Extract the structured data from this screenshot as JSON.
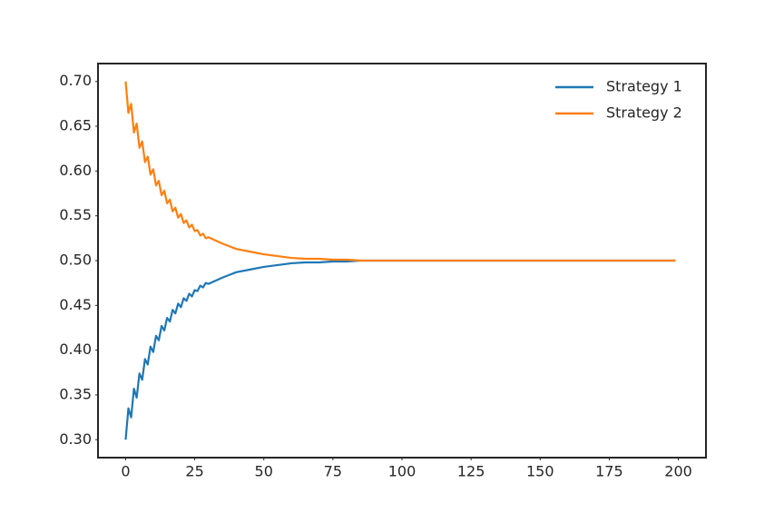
{
  "chart_data": {
    "type": "line",
    "x": [
      0,
      1,
      2,
      3,
      4,
      5,
      6,
      7,
      8,
      9,
      10,
      11,
      12,
      13,
      14,
      15,
      16,
      17,
      18,
      19,
      20,
      21,
      22,
      23,
      24,
      25,
      26,
      27,
      28,
      29,
      30,
      35,
      40,
      45,
      50,
      55,
      60,
      65,
      70,
      75,
      80,
      85,
      90,
      100,
      110,
      120,
      130,
      140,
      150,
      160,
      170,
      180,
      190,
      199
    ],
    "series": [
      {
        "name": "Strategy 1",
        "color": "#1f77b4",
        "values": [
          0.3,
          0.335,
          0.325,
          0.357,
          0.347,
          0.374,
          0.367,
          0.39,
          0.384,
          0.404,
          0.398,
          0.416,
          0.411,
          0.427,
          0.422,
          0.436,
          0.432,
          0.445,
          0.441,
          0.452,
          0.448,
          0.458,
          0.455,
          0.463,
          0.46,
          0.467,
          0.466,
          0.472,
          0.47,
          0.475,
          0.474,
          0.481,
          0.487,
          0.49,
          0.493,
          0.495,
          0.497,
          0.498,
          0.498,
          0.499,
          0.499,
          0.5,
          0.5,
          0.5,
          0.5,
          0.5,
          0.5,
          0.5,
          0.5,
          0.5,
          0.5,
          0.5,
          0.5,
          0.5
        ]
      },
      {
        "name": "Strategy 2",
        "color": "#ff7f0e",
        "values": [
          0.7,
          0.665,
          0.675,
          0.643,
          0.653,
          0.626,
          0.633,
          0.61,
          0.616,
          0.596,
          0.602,
          0.584,
          0.589,
          0.573,
          0.578,
          0.564,
          0.568,
          0.555,
          0.559,
          0.548,
          0.552,
          0.542,
          0.545,
          0.537,
          0.54,
          0.533,
          0.534,
          0.528,
          0.53,
          0.525,
          0.526,
          0.519,
          0.513,
          0.51,
          0.507,
          0.505,
          0.503,
          0.502,
          0.502,
          0.501,
          0.501,
          0.5,
          0.5,
          0.5,
          0.5,
          0.5,
          0.5,
          0.5,
          0.5,
          0.5,
          0.5,
          0.5,
          0.5,
          0.5
        ]
      }
    ],
    "xlim": [
      -10,
      210
    ],
    "xticks": [
      0,
      25,
      50,
      75,
      100,
      125,
      150,
      175,
      200
    ],
    "ylim": [
      0.28,
      0.72
    ],
    "yticks": [
      {
        "value": 0.3,
        "label": "0.30"
      },
      {
        "value": 0.35,
        "label": "0.35"
      },
      {
        "value": 0.4,
        "label": "0.40"
      },
      {
        "value": 0.45,
        "label": "0.45"
      },
      {
        "value": 0.5,
        "label": "0.50"
      },
      {
        "value": 0.55,
        "label": "0.55"
      },
      {
        "value": 0.6,
        "label": "0.60"
      },
      {
        "value": 0.65,
        "label": "0.65"
      },
      {
        "value": 0.7,
        "label": "0.70"
      }
    ],
    "grid": false,
    "legend": "upper right"
  }
}
